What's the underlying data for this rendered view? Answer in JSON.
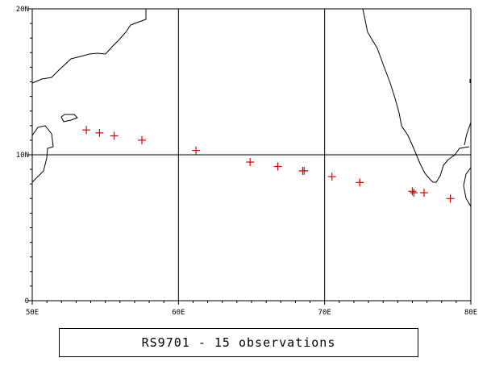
{
  "map": {
    "lon_range_deg_e": [
      50,
      80
    ],
    "lat_range_deg_n": [
      0,
      20
    ],
    "x_ticks": [
      {
        "value": 50,
        "label": "50E"
      },
      {
        "value": 60,
        "label": "60E"
      },
      {
        "value": 70,
        "label": "70E"
      },
      {
        "value": 80,
        "label": "80E"
      }
    ],
    "y_ticks": [
      {
        "value": 0,
        "label": "0"
      },
      {
        "value": 10,
        "label": "10N"
      },
      {
        "value": 20,
        "label": "20N"
      }
    ],
    "gridlines_deg": {
      "lon": [
        60,
        70
      ],
      "lat": [
        10
      ]
    },
    "marker_symbol": "+",
    "marker_color": "#e00000",
    "frame_color": "#000000",
    "observations": [
      {
        "lon": 53.7,
        "lat": 11.7
      },
      {
        "lon": 54.6,
        "lat": 11.5
      },
      {
        "lon": 55.6,
        "lat": 11.3
      },
      {
        "lon": 57.5,
        "lat": 11.0
      },
      {
        "lon": 61.2,
        "lat": 10.3
      },
      {
        "lon": 64.9,
        "lat": 9.5
      },
      {
        "lon": 66.8,
        "lat": 9.2
      },
      {
        "lon": 68.5,
        "lat": 8.9
      },
      {
        "lon": 68.6,
        "lat": 8.9
      },
      {
        "lon": 70.5,
        "lat": 8.5
      },
      {
        "lon": 72.4,
        "lat": 8.1
      },
      {
        "lon": 76.0,
        "lat": 7.5
      },
      {
        "lon": 76.1,
        "lat": 7.4
      },
      {
        "lon": 76.8,
        "lat": 7.4
      },
      {
        "lon": 78.6,
        "lat": 7.0
      }
    ]
  },
  "caption": {
    "text": "RS9701 - 15 observations"
  }
}
